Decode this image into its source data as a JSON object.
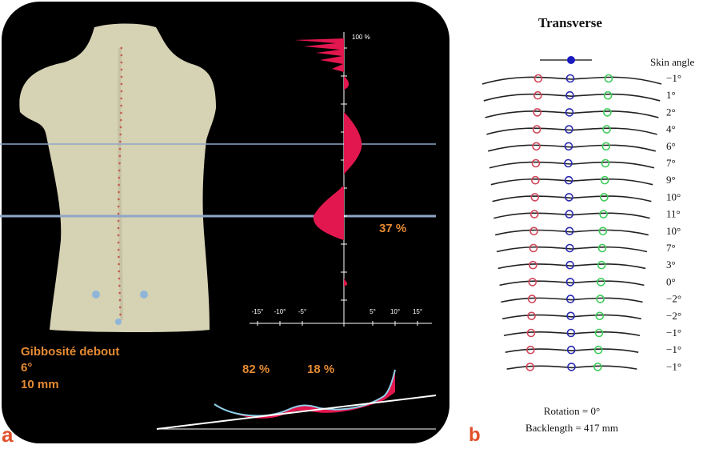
{
  "panel_a": {
    "label": "a",
    "scale_top": "100 %",
    "percent_right": "37 %",
    "axis_ticks": [
      "-15°",
      "-10°",
      "-5°",
      "5°",
      "10°",
      "15°"
    ],
    "gibbosity_title": "Gibbosité debout",
    "gibbosity_angle": "6°",
    "gibbosity_mm": "10 mm",
    "pct_left": "82 %",
    "pct_right": "18 %",
    "colors": {
      "accent": "#e58a33",
      "profile": "#e3174f",
      "line": "#8fa6c8",
      "curve": "#8fd0e8"
    }
  },
  "panel_b": {
    "label": "b",
    "title": "Transverse",
    "skin_angle_header": "Skin angle",
    "angles": [
      "−1°",
      "1°",
      "2°",
      "4°",
      "6°",
      "7°",
      "9°",
      "10°",
      "11°",
      "10°",
      "7°",
      "3°",
      "0°",
      "−2°",
      "−2°",
      "−1°",
      "−1°",
      "−1°"
    ],
    "rotation": "Rotation = 0°",
    "backlength": "Backlength =  417 mm",
    "colors": {
      "red": "#d0465a",
      "blue": "#2a2ab0",
      "green": "#3dcc5a"
    }
  }
}
